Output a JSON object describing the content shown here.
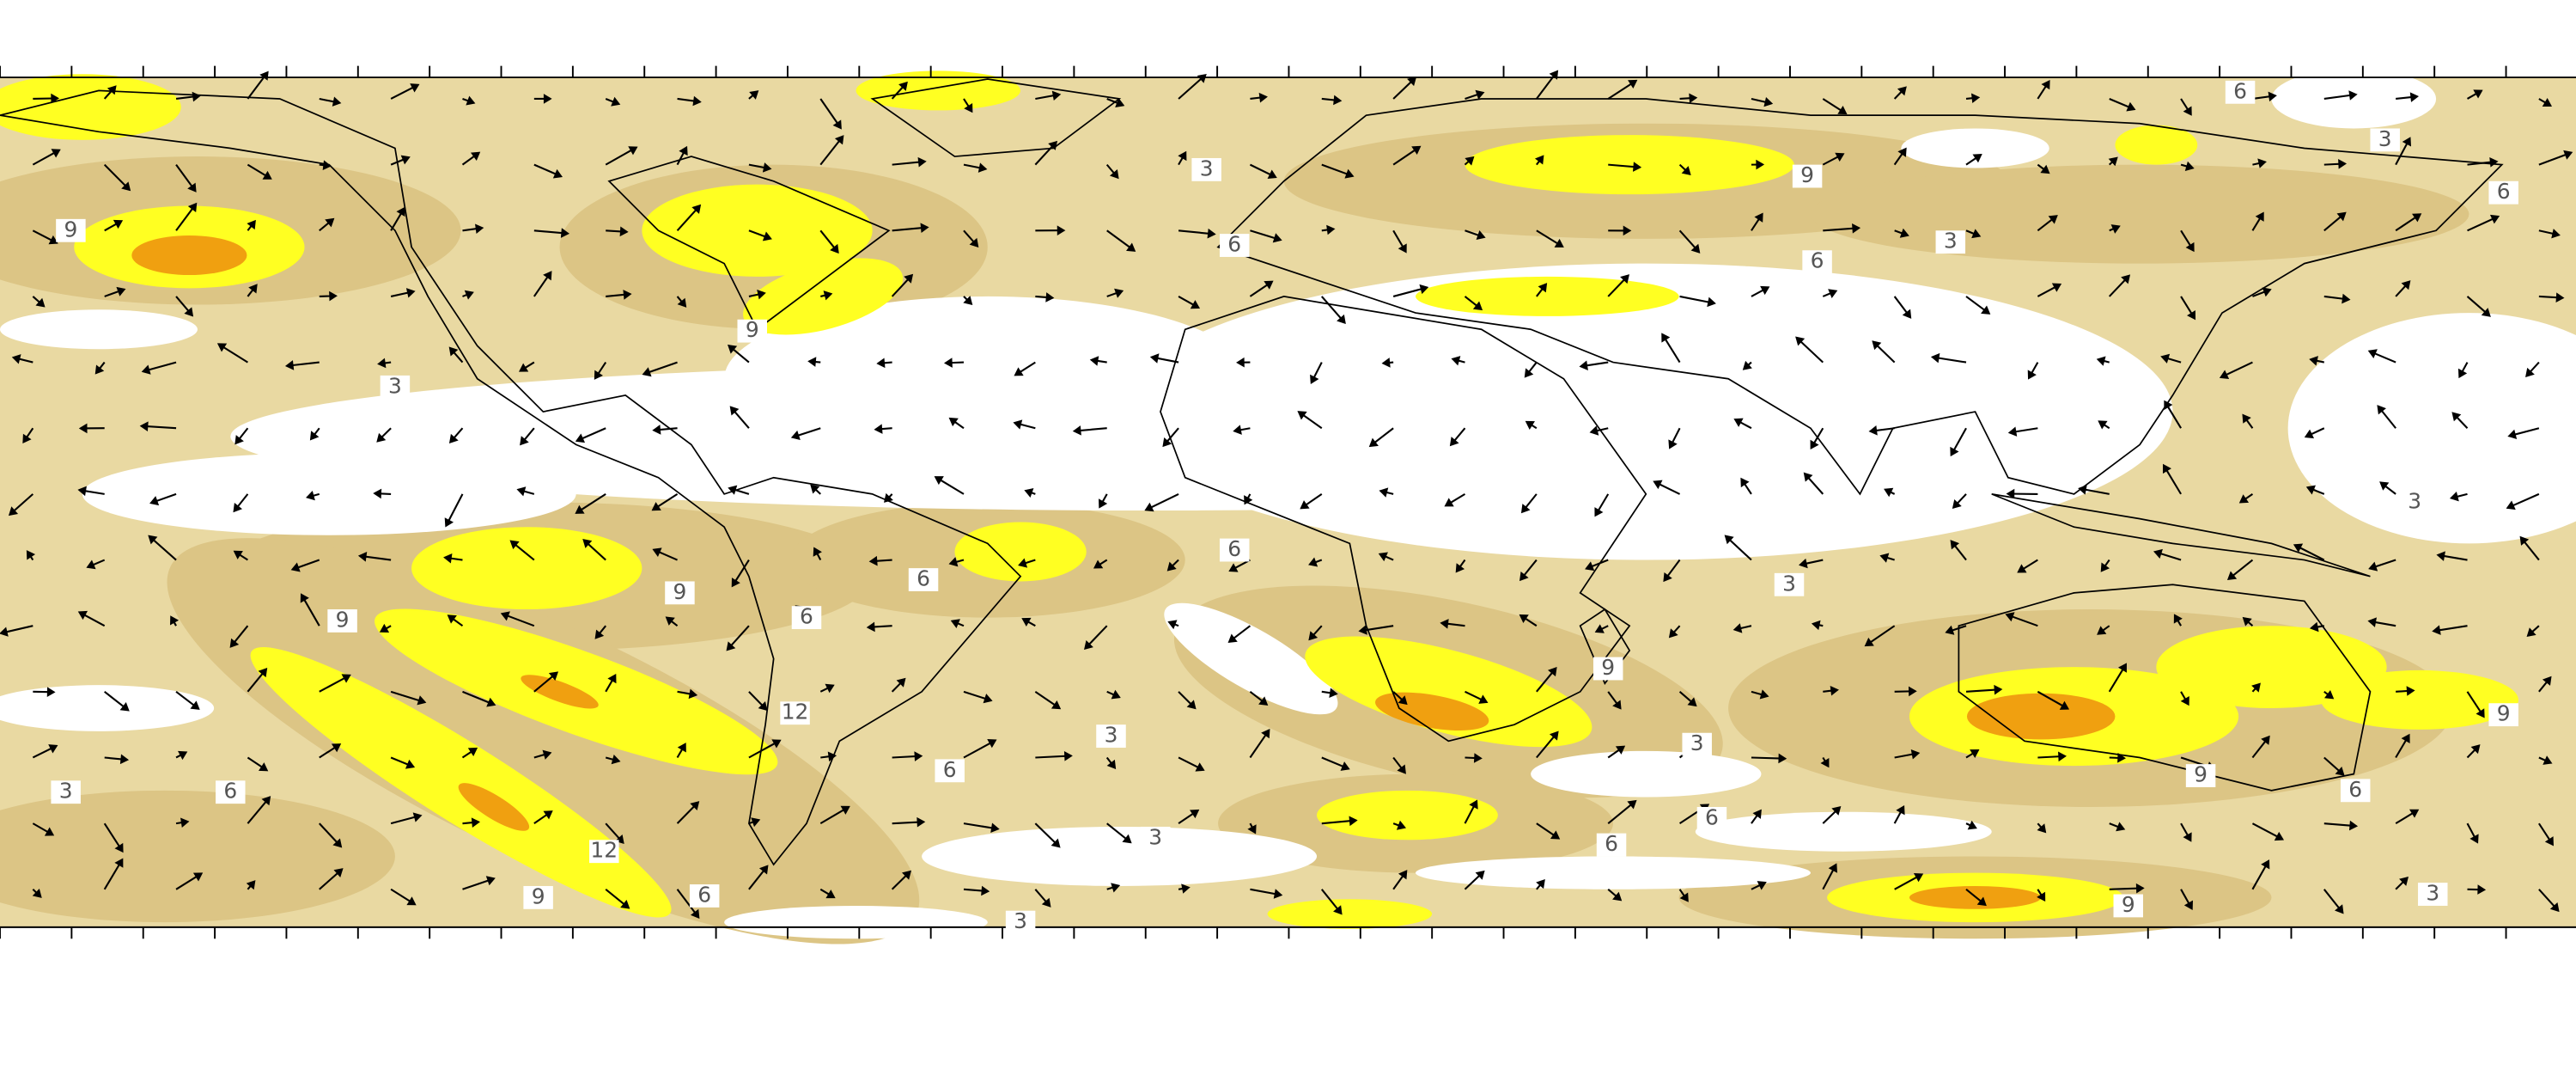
{
  "map": {
    "contour_labels": [
      9,
      3,
      9,
      6,
      3,
      6,
      3,
      6,
      6,
      9,
      3,
      3,
      6,
      6,
      9,
      3,
      9,
      6,
      9,
      12,
      3,
      9,
      3,
      6,
      9,
      3,
      6,
      6,
      6,
      3,
      6,
      12,
      9,
      6,
      9,
      3,
      3
    ]
  }
}
